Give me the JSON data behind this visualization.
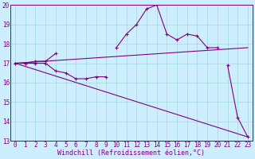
{
  "background_color": "#cceeff",
  "grid_color": "#aadddd",
  "line_color": "#800080",
  "marker_color": "#800080",
  "xlabel": "Windchill (Refroidissement éolien,°C)",
  "xlabel_fontsize": 6.0,
  "tick_fontsize": 5.5,
  "xlim": [
    -0.5,
    23.5
  ],
  "ylim": [
    13,
    20
  ],
  "yticks": [
    13,
    14,
    15,
    16,
    17,
    18,
    19,
    20
  ],
  "xticks": [
    0,
    1,
    2,
    3,
    4,
    5,
    6,
    7,
    8,
    9,
    10,
    11,
    12,
    13,
    14,
    15,
    16,
    17,
    18,
    19,
    20,
    21,
    22,
    23
  ],
  "line1_x": [
    0,
    1,
    2,
    3,
    4,
    5,
    6,
    7,
    8,
    9,
    21,
    22,
    23
  ],
  "line1_y": [
    17.0,
    17.0,
    17.0,
    17.0,
    16.6,
    16.5,
    16.2,
    16.2,
    16.3,
    16.3,
    16.9,
    14.2,
    13.2
  ],
  "line2_x": [
    0,
    1,
    2,
    3,
    4,
    10,
    11,
    12,
    13,
    14,
    15,
    16,
    17,
    18,
    19,
    20
  ],
  "line2_y": [
    17.0,
    17.0,
    17.1,
    17.1,
    17.5,
    17.8,
    18.5,
    19.0,
    19.8,
    20.0,
    18.5,
    18.2,
    18.5,
    18.4,
    17.8,
    17.8
  ],
  "line3_x": [
    0,
    23
  ],
  "line3_y": [
    17.0,
    13.2
  ],
  "line4_x": [
    0,
    23
  ],
  "line4_y": [
    17.0,
    17.8
  ]
}
